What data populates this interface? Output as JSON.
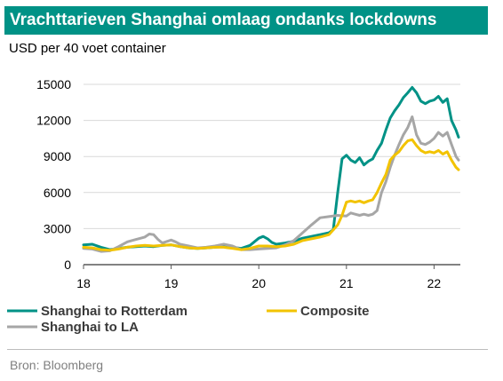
{
  "header": {
    "title": "Vrachttarieven Shanghai omlaag ondanks lockdowns",
    "subtitle": "USD per 40 voet container",
    "title_bg": "#009286"
  },
  "footer": {
    "source": "Bron: Bloomberg"
  },
  "chart_data": {
    "type": "line",
    "xlabel": "",
    "ylabel": "",
    "xlim": [
      18.0,
      22.3
    ],
    "ylim": [
      0,
      15000
    ],
    "x_ticks": [
      {
        "value": 18,
        "label": "18"
      },
      {
        "value": 19,
        "label": "19"
      },
      {
        "value": 20,
        "label": "20"
      },
      {
        "value": 21,
        "label": "21"
      },
      {
        "value": 22,
        "label": "22"
      }
    ],
    "y_ticks": [
      {
        "value": 0,
        "label": "0"
      },
      {
        "value": 3000,
        "label": "3000"
      },
      {
        "value": 6000,
        "label": "6000"
      },
      {
        "value": 9000,
        "label": "9000"
      },
      {
        "value": 12000,
        "label": "12000"
      },
      {
        "value": 15000,
        "label": "15000"
      }
    ],
    "grid": {
      "horizontal": true,
      "vertical": false
    },
    "legend_position": "bottom",
    "series": [
      {
        "name": "Shanghai to Rotterdam",
        "color": "#009286",
        "points": [
          [
            18.0,
            1650
          ],
          [
            18.1,
            1700
          ],
          [
            18.2,
            1450
          ],
          [
            18.3,
            1250
          ],
          [
            18.4,
            1350
          ],
          [
            18.5,
            1450
          ],
          [
            18.6,
            1500
          ],
          [
            18.7,
            1550
          ],
          [
            18.8,
            1500
          ],
          [
            18.9,
            1600
          ],
          [
            19.0,
            1650
          ],
          [
            19.1,
            1500
          ],
          [
            19.2,
            1400
          ],
          [
            19.3,
            1350
          ],
          [
            19.4,
            1400
          ],
          [
            19.5,
            1450
          ],
          [
            19.6,
            1500
          ],
          [
            19.7,
            1450
          ],
          [
            19.8,
            1350
          ],
          [
            19.9,
            1600
          ],
          [
            20.0,
            2200
          ],
          [
            20.05,
            2350
          ],
          [
            20.1,
            2150
          ],
          [
            20.15,
            1850
          ],
          [
            20.2,
            1700
          ],
          [
            20.3,
            1800
          ],
          [
            20.4,
            1950
          ],
          [
            20.5,
            2200
          ],
          [
            20.6,
            2350
          ],
          [
            20.7,
            2500
          ],
          [
            20.8,
            2650
          ],
          [
            20.85,
            2900
          ],
          [
            20.9,
            6000
          ],
          [
            20.95,
            8800
          ],
          [
            21.0,
            9100
          ],
          [
            21.05,
            8700
          ],
          [
            21.1,
            8500
          ],
          [
            21.15,
            8900
          ],
          [
            21.2,
            8300
          ],
          [
            21.25,
            8600
          ],
          [
            21.3,
            8800
          ],
          [
            21.35,
            9500
          ],
          [
            21.4,
            10100
          ],
          [
            21.45,
            11200
          ],
          [
            21.5,
            12200
          ],
          [
            21.55,
            12800
          ],
          [
            21.6,
            13300
          ],
          [
            21.65,
            13900
          ],
          [
            21.7,
            14300
          ],
          [
            21.75,
            14750
          ],
          [
            21.8,
            14300
          ],
          [
            21.85,
            13600
          ],
          [
            21.9,
            13400
          ],
          [
            21.95,
            13600
          ],
          [
            22.0,
            13700
          ],
          [
            22.05,
            14000
          ],
          [
            22.1,
            13500
          ],
          [
            22.15,
            13800
          ],
          [
            22.2,
            12000
          ],
          [
            22.25,
            11200
          ],
          [
            22.28,
            10600
          ]
        ]
      },
      {
        "name": "Composite",
        "color": "#f2c300",
        "points": [
          [
            18.0,
            1450
          ],
          [
            18.1,
            1400
          ],
          [
            18.2,
            1250
          ],
          [
            18.3,
            1200
          ],
          [
            18.4,
            1300
          ],
          [
            18.5,
            1450
          ],
          [
            18.6,
            1550
          ],
          [
            18.7,
            1600
          ],
          [
            18.8,
            1550
          ],
          [
            18.9,
            1600
          ],
          [
            19.0,
            1650
          ],
          [
            19.1,
            1500
          ],
          [
            19.2,
            1400
          ],
          [
            19.3,
            1350
          ],
          [
            19.4,
            1400
          ],
          [
            19.5,
            1450
          ],
          [
            19.6,
            1450
          ],
          [
            19.7,
            1350
          ],
          [
            19.8,
            1250
          ],
          [
            19.9,
            1350
          ],
          [
            20.0,
            1550
          ],
          [
            20.1,
            1550
          ],
          [
            20.2,
            1500
          ],
          [
            20.3,
            1550
          ],
          [
            20.4,
            1700
          ],
          [
            20.5,
            2000
          ],
          [
            20.6,
            2150
          ],
          [
            20.7,
            2300
          ],
          [
            20.8,
            2500
          ],
          [
            20.9,
            3300
          ],
          [
            20.95,
            4100
          ],
          [
            21.0,
            5200
          ],
          [
            21.05,
            5300
          ],
          [
            21.1,
            5200
          ],
          [
            21.15,
            5300
          ],
          [
            21.2,
            5150
          ],
          [
            21.25,
            5300
          ],
          [
            21.3,
            5400
          ],
          [
            21.35,
            6000
          ],
          [
            21.4,
            6800
          ],
          [
            21.45,
            7500
          ],
          [
            21.5,
            8700
          ],
          [
            21.55,
            9100
          ],
          [
            21.6,
            9400
          ],
          [
            21.65,
            9900
          ],
          [
            21.7,
            10300
          ],
          [
            21.75,
            10400
          ],
          [
            21.8,
            9900
          ],
          [
            21.85,
            9500
          ],
          [
            21.9,
            9300
          ],
          [
            21.95,
            9400
          ],
          [
            22.0,
            9300
          ],
          [
            22.05,
            9500
          ],
          [
            22.1,
            9200
          ],
          [
            22.15,
            9400
          ],
          [
            22.2,
            8700
          ],
          [
            22.25,
            8100
          ],
          [
            22.28,
            7900
          ]
        ]
      },
      {
        "name": "Shanghai to LA",
        "color": "#a6a6a6",
        "points": [
          [
            18.0,
            1350
          ],
          [
            18.1,
            1300
          ],
          [
            18.2,
            1100
          ],
          [
            18.3,
            1150
          ],
          [
            18.4,
            1500
          ],
          [
            18.5,
            1900
          ],
          [
            18.6,
            2100
          ],
          [
            18.7,
            2300
          ],
          [
            18.75,
            2550
          ],
          [
            18.8,
            2500
          ],
          [
            18.85,
            2100
          ],
          [
            18.9,
            1800
          ],
          [
            19.0,
            2050
          ],
          [
            19.05,
            1900
          ],
          [
            19.1,
            1700
          ],
          [
            19.2,
            1550
          ],
          [
            19.3,
            1400
          ],
          [
            19.4,
            1450
          ],
          [
            19.5,
            1550
          ],
          [
            19.6,
            1700
          ],
          [
            19.7,
            1550
          ],
          [
            19.8,
            1250
          ],
          [
            19.9,
            1250
          ],
          [
            20.0,
            1300
          ],
          [
            20.1,
            1350
          ],
          [
            20.2,
            1400
          ],
          [
            20.3,
            1650
          ],
          [
            20.4,
            2000
          ],
          [
            20.5,
            2650
          ],
          [
            20.6,
            3300
          ],
          [
            20.7,
            3900
          ],
          [
            20.8,
            4000
          ],
          [
            20.9,
            4100
          ],
          [
            21.0,
            4050
          ],
          [
            21.05,
            4300
          ],
          [
            21.1,
            4200
          ],
          [
            21.15,
            4100
          ],
          [
            21.2,
            4200
          ],
          [
            21.25,
            4100
          ],
          [
            21.3,
            4200
          ],
          [
            21.35,
            4500
          ],
          [
            21.4,
            6000
          ],
          [
            21.45,
            6900
          ],
          [
            21.5,
            8100
          ],
          [
            21.55,
            9100
          ],
          [
            21.6,
            10000
          ],
          [
            21.65,
            10800
          ],
          [
            21.7,
            11400
          ],
          [
            21.75,
            12300
          ],
          [
            21.8,
            10800
          ],
          [
            21.85,
            10100
          ],
          [
            21.9,
            10000
          ],
          [
            21.95,
            10200
          ],
          [
            22.0,
            10500
          ],
          [
            22.05,
            11000
          ],
          [
            22.1,
            10700
          ],
          [
            22.15,
            11000
          ],
          [
            22.2,
            10000
          ],
          [
            22.25,
            9000
          ],
          [
            22.28,
            8700
          ]
        ]
      }
    ]
  }
}
